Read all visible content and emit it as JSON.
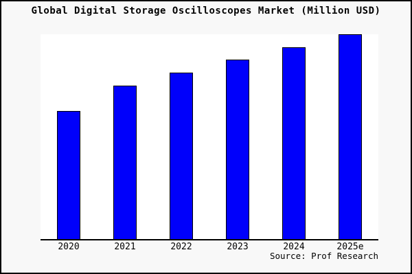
{
  "colors": {
    "background": "#f8f8f8",
    "plot_background": "#ffffff",
    "bar_fill": "#0000fb",
    "bar_border": "#000000",
    "axis_line": "#000000",
    "frame_border": "#000000",
    "text": "#000000"
  },
  "chart_data": {
    "type": "bar",
    "title": "Global Digital Storage Oscilloscopes Market (Million USD)",
    "categories": [
      "2020",
      "2021",
      "2022",
      "2023",
      "2024",
      "2025e"
    ],
    "values": [
      62.4,
      74.9,
      81.3,
      87.6,
      93.7,
      100
    ],
    "values_note": "y-axis unlabeled in image; values estimated from bar pixel heights as percent of tallest bar (2025e = 100)",
    "xlabel": "",
    "ylabel": "",
    "ylim": [
      0,
      100
    ],
    "grid": false,
    "legend": false,
    "source": "Source: Prof Research"
  }
}
